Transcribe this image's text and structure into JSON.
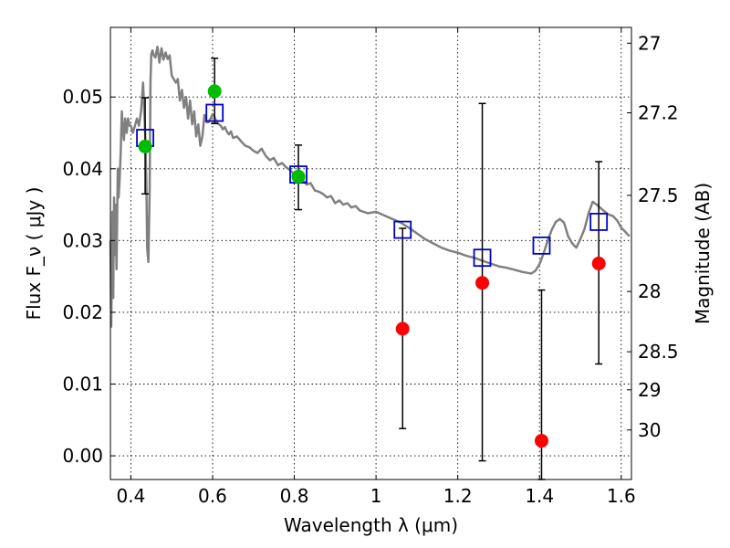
{
  "chart_data": {
    "type": "scatter",
    "title": "",
    "xlabel": "Wavelength  λ (μm)",
    "ylabel": "Flux  F_ν  ( μJy )",
    "ylabel_right": "Magnitude (AB)",
    "xlim": [
      0.35,
      1.625
    ],
    "ylim": [
      -0.0033,
      0.0597
    ],
    "x_ticks": [
      0.4,
      0.6,
      0.8,
      1.0,
      1.2,
      1.4,
      1.6
    ],
    "x_tick_labels": [
      "0.4",
      "0.6",
      "0.8",
      "1",
      "1.2",
      "1.4",
      "1.6"
    ],
    "y_ticks": [
      0.0,
      0.01,
      0.02,
      0.03,
      0.04,
      0.05
    ],
    "y_tick_labels": [
      "0.00",
      "0.01",
      "0.02",
      "0.03",
      "0.04",
      "0.05"
    ],
    "right_ticks": [
      {
        "label": "27",
        "flux": 0.0575
      },
      {
        "label": "27.2",
        "flux": 0.0478
      },
      {
        "label": "27.5",
        "flux": 0.0363
      },
      {
        "label": "28",
        "flux": 0.0229
      },
      {
        "label": "28.5",
        "flux": 0.0145
      },
      {
        "label": "29",
        "flux": 0.0092
      },
      {
        "label": "30",
        "flux": 0.0036
      }
    ],
    "grid": true,
    "colors": {
      "model": "#808080",
      "model_points": "#0000cc",
      "detections": "#00bb00",
      "upper_limits": "#ff0000",
      "errorbars": "#000000"
    },
    "model_spectrum": {
      "x": [
        0.35,
        0.352,
        0.355,
        0.357,
        0.359,
        0.361,
        0.363,
        0.365,
        0.368,
        0.37,
        0.372,
        0.375,
        0.378,
        0.38,
        0.383,
        0.386,
        0.39,
        0.393,
        0.397,
        0.4,
        0.405,
        0.41,
        0.415,
        0.42,
        0.425,
        0.43,
        0.435,
        0.438,
        0.44,
        0.443,
        0.446,
        0.448,
        0.45,
        0.453,
        0.456,
        0.46,
        0.465,
        0.47,
        0.475,
        0.48,
        0.485,
        0.49,
        0.495,
        0.5,
        0.505,
        0.51,
        0.515,
        0.52,
        0.525,
        0.53,
        0.535,
        0.54,
        0.545,
        0.55,
        0.555,
        0.56,
        0.565,
        0.57,
        0.575,
        0.58,
        0.585,
        0.59,
        0.595,
        0.6,
        0.605,
        0.61,
        0.615,
        0.62,
        0.625,
        0.63,
        0.635,
        0.64,
        0.645,
        0.65,
        0.66,
        0.67,
        0.68,
        0.69,
        0.7,
        0.71,
        0.72,
        0.73,
        0.74,
        0.75,
        0.76,
        0.77,
        0.78,
        0.79,
        0.8,
        0.81,
        0.82,
        0.83,
        0.84,
        0.85,
        0.86,
        0.87,
        0.88,
        0.89,
        0.9,
        0.91,
        0.92,
        0.93,
        0.94,
        0.95,
        0.96,
        0.98,
        1.0,
        1.02,
        1.04,
        1.06,
        1.08,
        1.1,
        1.12,
        1.14,
        1.16,
        1.18,
        1.2,
        1.22,
        1.24,
        1.26,
        1.28,
        1.3,
        1.32,
        1.34,
        1.36,
        1.37,
        1.38,
        1.39,
        1.4,
        1.41,
        1.42,
        1.43,
        1.44,
        1.45,
        1.46,
        1.47,
        1.48,
        1.49,
        1.5,
        1.51,
        1.52,
        1.53,
        1.54,
        1.55,
        1.56,
        1.57,
        1.58,
        1.59,
        1.6,
        1.61,
        1.62
      ],
      "y": [
        0.03,
        0.018,
        0.034,
        0.022,
        0.036,
        0.028,
        0.035,
        0.026,
        0.04,
        0.036,
        0.038,
        0.042,
        0.048,
        0.046,
        0.044,
        0.047,
        0.045,
        0.047,
        0.046,
        0.046,
        0.045,
        0.046,
        0.047,
        0.046,
        0.048,
        0.052,
        0.045,
        0.038,
        0.029,
        0.027,
        0.037,
        0.052,
        0.056,
        0.0565,
        0.0558,
        0.0555,
        0.057,
        0.0548,
        0.0568,
        0.0552,
        0.0562,
        0.0553,
        0.0558,
        0.053,
        0.0525,
        0.052,
        0.0525,
        0.0495,
        0.051,
        0.0485,
        0.05,
        0.047,
        0.0495,
        0.0462,
        0.048,
        0.0445,
        0.0462,
        0.0432,
        0.0445,
        0.0475,
        0.0465,
        0.0465,
        0.047,
        0.0476,
        0.0472,
        0.0465,
        0.0462,
        0.046,
        0.0455,
        0.0458,
        0.0452,
        0.0448,
        0.0452,
        0.0443,
        0.0445,
        0.0438,
        0.0432,
        0.043,
        0.0425,
        0.0422,
        0.0428,
        0.0418,
        0.0412,
        0.0415,
        0.0405,
        0.0408,
        0.0402,
        0.0398,
        0.0392,
        0.0388,
        0.0385,
        0.0378,
        0.038,
        0.037,
        0.0368,
        0.0365,
        0.036,
        0.0362,
        0.0352,
        0.0356,
        0.035,
        0.0352,
        0.0346,
        0.0348,
        0.0342,
        0.0338,
        0.034,
        0.0335,
        0.033,
        0.0325,
        0.0318,
        0.031,
        0.0302,
        0.0296,
        0.029,
        0.0286,
        0.0283,
        0.0279,
        0.0276,
        0.0272,
        0.0268,
        0.0264,
        0.0262,
        0.0259,
        0.0256,
        0.0255,
        0.0254,
        0.0258,
        0.0267,
        0.0282,
        0.03,
        0.0315,
        0.0326,
        0.033,
        0.0325,
        0.0306,
        0.0296,
        0.029,
        0.0302,
        0.0316,
        0.0338,
        0.0354,
        0.035,
        0.0345,
        0.034,
        0.0336,
        0.0334,
        0.0328,
        0.0318,
        0.0312,
        0.0306
      ]
    },
    "model_points": {
      "name": "",
      "x": [
        0.435,
        0.605,
        0.81,
        1.065,
        1.26,
        1.405,
        1.545
      ],
      "y": [
        0.0443,
        0.0478,
        0.0392,
        0.0315,
        0.0276,
        0.0293,
        0.0326
      ]
    },
    "detections": {
      "name": "",
      "x": [
        0.435,
        0.605,
        0.81
      ],
      "y": [
        0.0431,
        0.0508,
        0.0389
      ],
      "err_low": [
        0.0365,
        0.0463,
        0.0343
      ],
      "err_high": [
        0.0499,
        0.0554,
        0.0433
      ]
    },
    "upper_limits": {
      "name": "",
      "x": [
        1.065,
        1.26,
        1.405,
        1.545
      ],
      "y": [
        0.0177,
        0.0241,
        0.0021,
        0.0268
      ],
      "err_low": [
        0.0038,
        -0.0007,
        -0.0033,
        0.0128
      ],
      "err_high": [
        0.0317,
        0.0491,
        0.0231,
        0.041
      ]
    }
  }
}
